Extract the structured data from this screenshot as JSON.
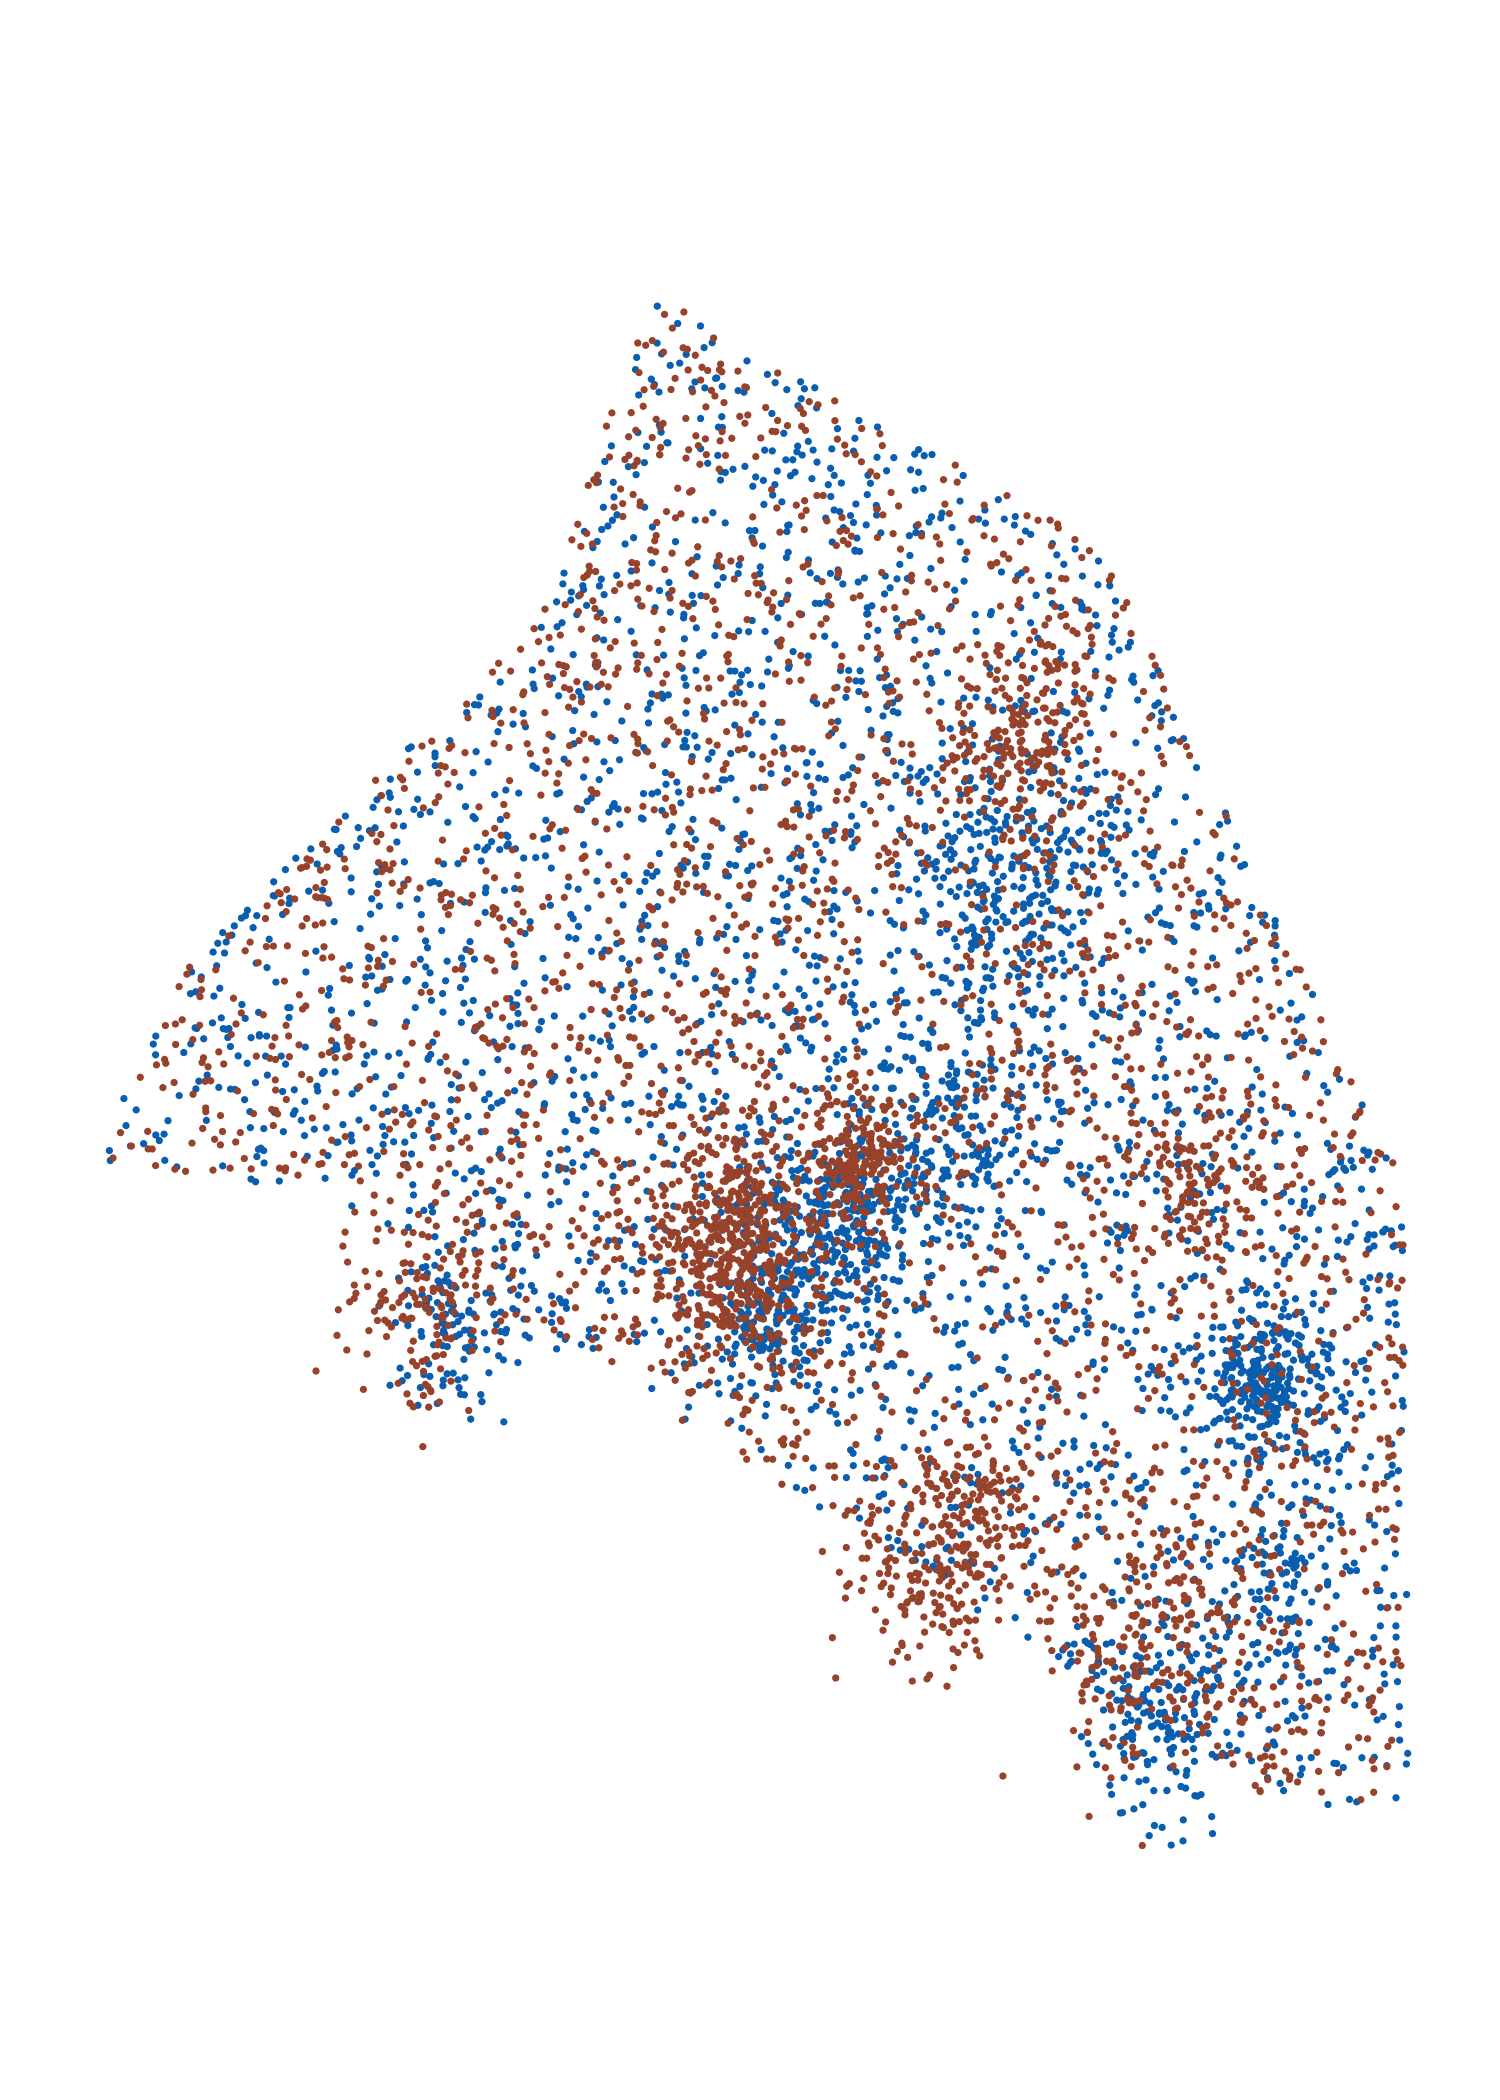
{
  "chart_data": {
    "type": "scatter",
    "title": "",
    "xlabel": "",
    "ylabel": "",
    "axes_visible": false,
    "grid": false,
    "legend": "none",
    "xlim": [
      0,
      100
    ],
    "ylim": [
      0,
      100
    ],
    "point_radius_data": 0.26,
    "series": [
      {
        "color": "#0a5eb0",
        "seed": 7,
        "count": 2600
      },
      {
        "color": "#97422a",
        "seed": 11,
        "count": 2600
      }
    ],
    "density_regions": {
      "boundary": [
        [
          43,
          92
        ],
        [
          75,
          78
        ],
        [
          97,
          42
        ],
        [
          97,
          8
        ],
        [
          88,
          8
        ],
        [
          20,
          42
        ],
        [
          3,
          44
        ],
        [
          10,
          55
        ],
        [
          35,
          74
        ]
      ],
      "clusters": [
        {
          "series": 1,
          "center": [
            49,
            39
          ],
          "spread": 3.2,
          "count": 520
        },
        {
          "series": 1,
          "center": [
            58,
            44
          ],
          "spread": 1.6,
          "count": 180
        },
        {
          "series": 1,
          "center": [
            69,
            67
          ],
          "spread": 2.6,
          "count": 180
        },
        {
          "series": 1,
          "center": [
            62,
            21
          ],
          "spread": 3.0,
          "count": 160
        },
        {
          "series": 1,
          "center": [
            78,
            17
          ],
          "spread": 3.6,
          "count": 160
        },
        {
          "series": 1,
          "center": [
            27,
            36
          ],
          "spread": 3.0,
          "count": 150
        },
        {
          "series": 1,
          "center": [
            82,
            43
          ],
          "spread": 2.5,
          "count": 120
        },
        {
          "series": 1,
          "center": [
            67,
            25
          ],
          "spread": 2.4,
          "count": 110
        },
        {
          "series": 0,
          "center": [
            56,
            40
          ],
          "spread": 3.0,
          "count": 320
        },
        {
          "series": 0,
          "center": [
            87,
            32
          ],
          "spread": 2.0,
          "count": 240
        },
        {
          "series": 0,
          "center": [
            69,
            60
          ],
          "spread": 3.4,
          "count": 220
        },
        {
          "series": 0,
          "center": [
            51,
            35
          ],
          "spread": 1.4,
          "count": 120
        },
        {
          "series": 0,
          "center": [
            79,
            12
          ],
          "spread": 2.6,
          "count": 140
        },
        {
          "series": 0,
          "center": [
            29,
            35
          ],
          "spread": 2.4,
          "count": 120
        },
        {
          "series": 0,
          "center": [
            64,
            46
          ],
          "spread": 3.2,
          "count": 180
        },
        {
          "series": 0,
          "center": [
            88,
            20
          ],
          "spread": 2.8,
          "count": 90
        }
      ]
    }
  }
}
